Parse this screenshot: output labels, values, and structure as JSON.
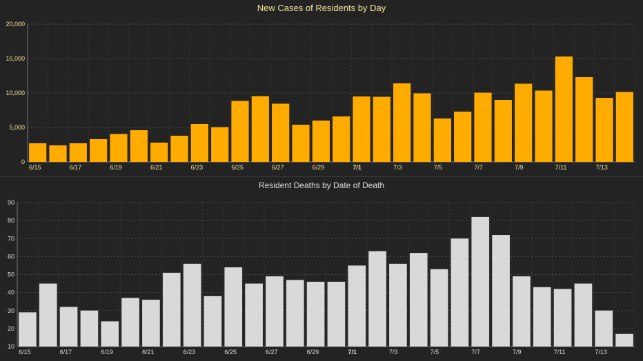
{
  "chart_data": [
    {
      "type": "bar",
      "title": "New Cases of Residents by Day",
      "categories": [
        "6/15",
        "6/16",
        "6/17",
        "6/18",
        "6/19",
        "6/20",
        "6/21",
        "6/22",
        "6/23",
        "6/24",
        "6/25",
        "6/26",
        "6/27",
        "6/28",
        "6/29",
        "6/30",
        "7/1",
        "7/2",
        "7/3",
        "7/4",
        "7/5",
        "7/6",
        "7/7",
        "7/8",
        "7/9",
        "7/10",
        "7/11",
        "7/12",
        "7/13",
        "7/14"
      ],
      "x_tick_labels": [
        "6/15",
        "6/17",
        "6/19",
        "6/21",
        "6/23",
        "6/25",
        "6/27",
        "6/29",
        "7/1",
        "7/3",
        "7/5",
        "7/7",
        "7/9",
        "7/11",
        "7/13"
      ],
      "bold_tick": "7/1",
      "values": [
        2700,
        2400,
        2700,
        3300,
        4050,
        4600,
        2800,
        3800,
        5500,
        5050,
        8850,
        9550,
        8450,
        5400,
        6000,
        6600,
        9500,
        9450,
        11400,
        9950,
        6300,
        7300,
        10050,
        9000,
        11350,
        10350,
        15300,
        12300,
        9300,
        10150
      ],
      "ylim": [
        0,
        20000
      ],
      "y_ticks": [
        0,
        5000,
        10000,
        15000,
        20000
      ],
      "y_tick_labels": [
        "0",
        "5,000",
        "10,000",
        "15,000",
        "20,000"
      ],
      "grid": true,
      "bar_color": "#ffab00",
      "title_color": "#f7e39a",
      "tick_color": "#f7e39a"
    },
    {
      "type": "bar",
      "title": "Resident Deaths by Date of Death",
      "categories": [
        "6/15",
        "6/16",
        "6/17",
        "6/18",
        "6/19",
        "6/20",
        "6/21",
        "6/22",
        "6/23",
        "6/24",
        "6/25",
        "6/26",
        "6/27",
        "6/28",
        "6/29",
        "6/30",
        "7/1",
        "7/2",
        "7/3",
        "7/4",
        "7/5",
        "7/6",
        "7/7",
        "7/8",
        "7/9",
        "7/10",
        "7/11",
        "7/12",
        "7/13",
        "7/14"
      ],
      "x_tick_labels": [
        "6/15",
        "6/17",
        "6/19",
        "6/21",
        "6/23",
        "6/25",
        "6/27",
        "6/29",
        "7/1",
        "7/3",
        "7/5",
        "7/7",
        "7/9",
        "7/11",
        "7/13"
      ],
      "bold_tick": "7/1",
      "values": [
        29,
        45,
        32,
        30,
        24,
        37,
        36,
        51,
        56,
        38,
        54,
        45,
        49,
        47,
        46,
        46,
        55,
        63,
        56,
        62,
        53,
        70,
        82,
        72,
        49,
        43,
        42,
        45,
        30,
        17
      ],
      "ylim": [
        10,
        90
      ],
      "y_ticks": [
        10,
        20,
        30,
        40,
        50,
        60,
        70,
        80,
        90
      ],
      "y_tick_labels": [
        "10",
        "20",
        "30",
        "40",
        "50",
        "60",
        "70",
        "80",
        "90"
      ],
      "grid": true,
      "bar_color": "#d9d9d9",
      "title_color": "#dcdcdc",
      "tick_color": "#dcdcdc"
    }
  ]
}
